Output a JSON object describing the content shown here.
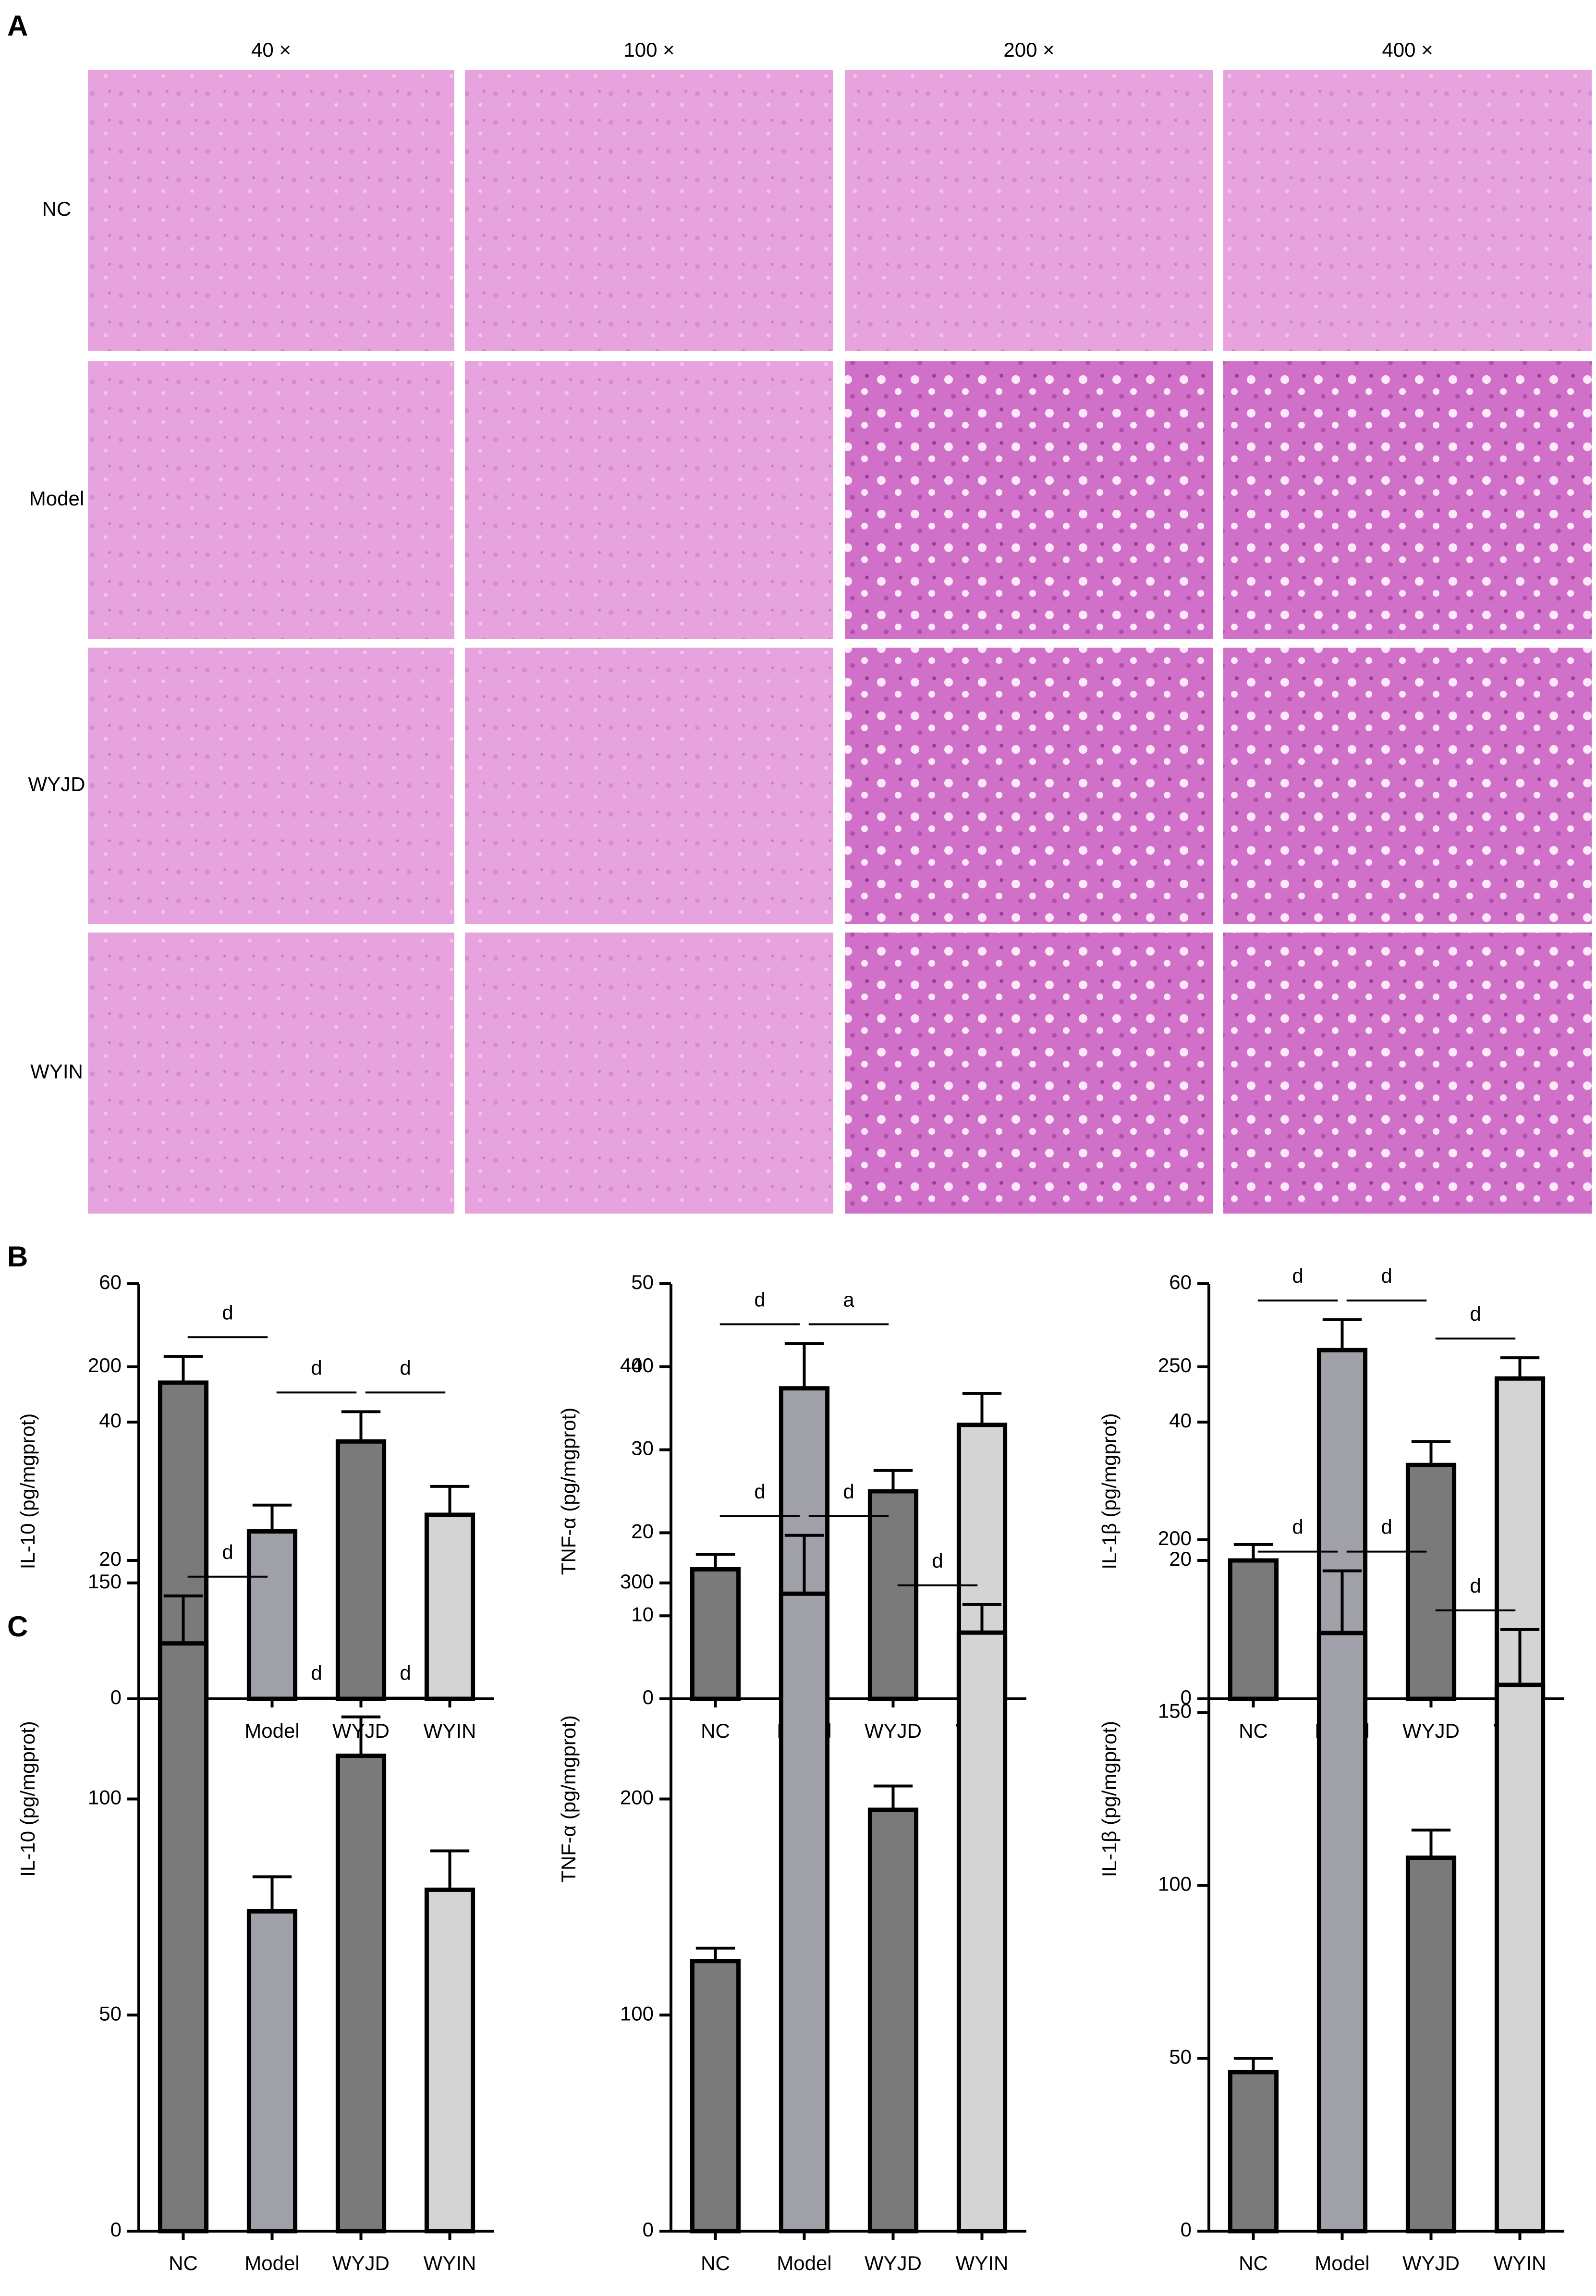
{
  "panel_labels": [
    "A",
    "B",
    "C"
  ],
  "histology": {
    "magnifications": [
      "40 ×",
      "100 ×",
      "200 ×",
      "400 ×"
    ],
    "groups": [
      "NC",
      "Model",
      "WYJD",
      "WYIN"
    ]
  },
  "chart_data": [
    {
      "type": "bar",
      "ylabel": "IL-10 (pg/mgprot)",
      "categories": [
        "NC",
        "Model",
        "WYJD",
        "WYIN"
      ],
      "values": [
        45.7,
        24.2,
        37.2,
        26.6
      ],
      "errors": [
        3.8,
        3.8,
        4.3,
        4.1
      ],
      "colors": [
        "#7a7a7a",
        "#a0a0a8",
        "#7a7a7a",
        "#d4d4d4"
      ],
      "ylim": [
        0,
        60
      ],
      "yticks": [
        0,
        20,
        40,
        60
      ],
      "significance": [
        {
          "label": "d",
          "between": [
            "NC",
            "Model"
          ]
        },
        {
          "label": "d",
          "between": [
            "Model",
            "WYJD"
          ]
        },
        {
          "label": "d",
          "between": [
            "WYJD",
            "WYIN"
          ]
        }
      ]
    },
    {
      "type": "bar",
      "ylabel": "TNF-α (pg/mgprot)",
      "categories": [
        "NC",
        "Model",
        "WYJD",
        "WYIN"
      ],
      "values": [
        15.6,
        37.4,
        25.0,
        33.0
      ],
      "errors": [
        1.8,
        5.4,
        2.5,
        3.8
      ],
      "colors": [
        "#7a7a7a",
        "#a0a0a8",
        "#7a7a7a",
        "#d4d4d4"
      ],
      "ylim": [
        0,
        50
      ],
      "yticks": [
        0,
        10,
        20,
        30,
        40,
        50
      ],
      "significance": [
        {
          "label": "d",
          "between": [
            "NC",
            "Model"
          ]
        },
        {
          "label": "a",
          "between": [
            "Model",
            "WYJD"
          ]
        }
      ]
    },
    {
      "type": "bar",
      "ylabel": "IL-1β (pg/mgprot)",
      "categories": [
        "NC",
        "Model",
        "WYJD",
        "WYIN"
      ],
      "values": [
        20.0,
        50.4,
        33.8,
        46.3
      ],
      "errors": [
        2.3,
        4.4,
        3.4,
        3.0
      ],
      "colors": [
        "#7a7a7a",
        "#a0a0a8",
        "#7a7a7a",
        "#d4d4d4"
      ],
      "ylim": [
        0,
        60
      ],
      "yticks": [
        0,
        20,
        40,
        60
      ],
      "significance": [
        {
          "label": "d",
          "between": [
            "NC",
            "Model"
          ]
        },
        {
          "label": "d",
          "between": [
            "Model",
            "WYJD"
          ]
        },
        {
          "label": "d",
          "between": [
            "WYJD",
            "WYIN"
          ]
        }
      ]
    },
    {
      "type": "bar",
      "ylabel": "IL-10 (pg/mgprot)",
      "categories": [
        "NC",
        "Model",
        "WYJD",
        "WYIN"
      ],
      "values": [
        136,
        74,
        110,
        79
      ],
      "errors": [
        11,
        8,
        9,
        9
      ],
      "colors": [
        "#7a7a7a",
        "#a0a0a8",
        "#7a7a7a",
        "#d4d4d4"
      ],
      "ylim": [
        0,
        200
      ],
      "yticks": [
        0,
        50,
        100,
        150,
        200
      ],
      "significance": [
        {
          "label": "d",
          "between": [
            "NC",
            "Model"
          ]
        },
        {
          "label": "d",
          "between": [
            "Model",
            "WYJD"
          ]
        },
        {
          "label": "d",
          "between": [
            "WYJD",
            "WYIN"
          ]
        }
      ]
    },
    {
      "type": "bar",
      "ylabel": "TNF-α (pg/mgprot)",
      "categories": [
        "NC",
        "Model",
        "WYJD",
        "WYIN"
      ],
      "values": [
        125,
        295,
        195,
        277
      ],
      "errors": [
        6,
        27,
        11,
        13
      ],
      "colors": [
        "#7a7a7a",
        "#a0a0a8",
        "#7a7a7a",
        "#d4d4d4"
      ],
      "ylim": [
        0,
        400
      ],
      "yticks": [
        0,
        100,
        200,
        300,
        400
      ],
      "significance": [
        {
          "label": "d",
          "between": [
            "NC",
            "Model"
          ]
        },
        {
          "label": "d",
          "between": [
            "Model",
            "WYJD"
          ]
        },
        {
          "label": "d",
          "between": [
            "WYJD",
            "WYIN"
          ]
        }
      ]
    },
    {
      "type": "bar",
      "ylabel": "IL-1β (pg/mgprot)",
      "categories": [
        "NC",
        "Model",
        "WYJD",
        "WYIN"
      ],
      "values": [
        46,
        173,
        108,
        158
      ],
      "errors": [
        4,
        18,
        8,
        16
      ],
      "colors": [
        "#7a7a7a",
        "#a0a0a8",
        "#7a7a7a",
        "#d4d4d4"
      ],
      "ylim": [
        0,
        250
      ],
      "yticks": [
        0,
        50,
        100,
        150,
        200,
        250
      ],
      "significance": [
        {
          "label": "d",
          "between": [
            "NC",
            "Model"
          ]
        },
        {
          "label": "d",
          "between": [
            "Model",
            "WYJD"
          ]
        },
        {
          "label": "d",
          "between": [
            "WYJD",
            "WYIN"
          ]
        }
      ]
    }
  ]
}
